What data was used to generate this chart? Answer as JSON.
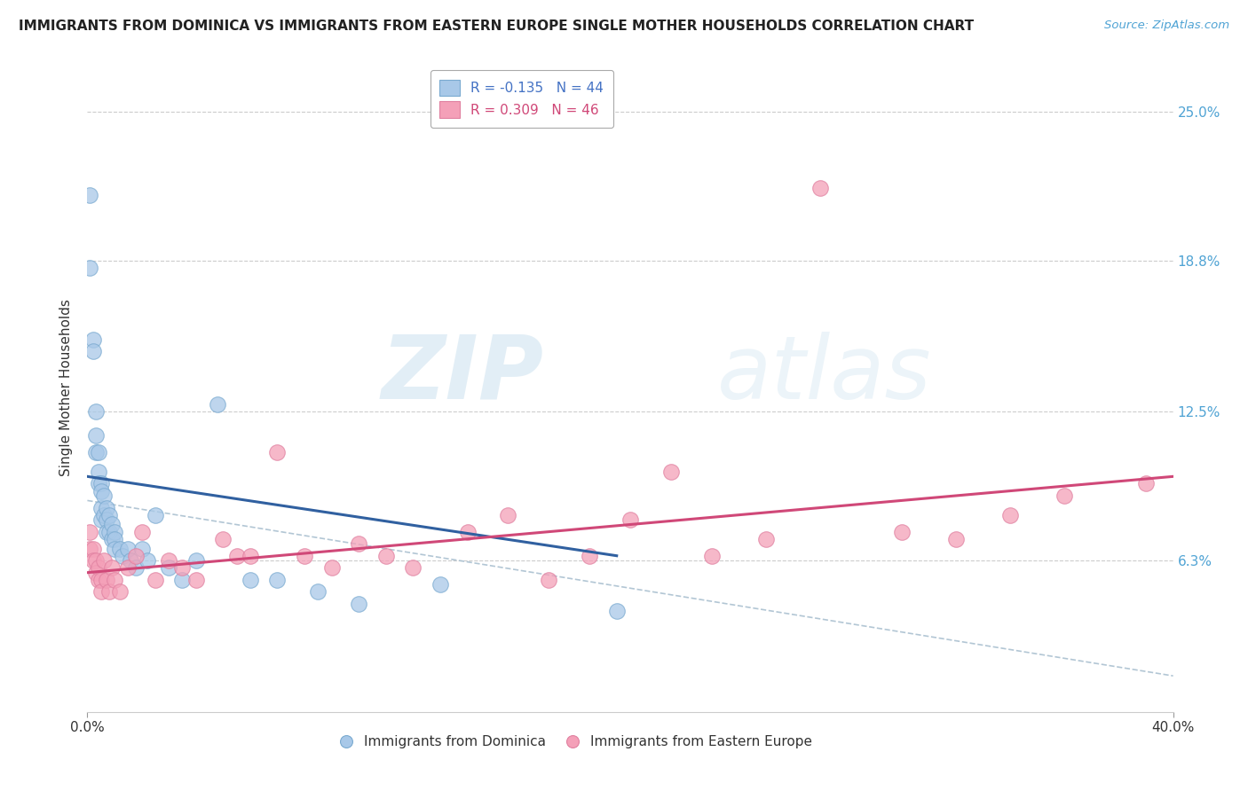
{
  "title": "IMMIGRANTS FROM DOMINICA VS IMMIGRANTS FROM EASTERN EUROPE SINGLE MOTHER HOUSEHOLDS CORRELATION CHART",
  "source": "Source: ZipAtlas.com",
  "ylabel": "Single Mother Households",
  "ytick_positions": [
    0.063,
    0.125,
    0.188,
    0.25
  ],
  "ytick_labels": [
    "6.3%",
    "12.5%",
    "18.8%",
    "25.0%"
  ],
  "xlim": [
    0.0,
    0.4
  ],
  "ylim": [
    0.0,
    0.27
  ],
  "legend1_label": "R = -0.135   N = 44",
  "legend2_label": "R = 0.309   N = 46",
  "blue_color": "#a8c8e8",
  "pink_color": "#f4a0b8",
  "blue_line_color": "#3060a0",
  "pink_line_color": "#d04878",
  "blue_line_x": [
    0.0,
    0.195
  ],
  "blue_line_y": [
    0.098,
    0.065
  ],
  "pink_line_x": [
    0.0,
    0.4
  ],
  "pink_line_y": [
    0.058,
    0.098
  ],
  "dash_line_x": [
    0.0,
    0.4
  ],
  "dash_line_y": [
    0.088,
    0.015
  ],
  "dominica_x": [
    0.001,
    0.001,
    0.002,
    0.002,
    0.003,
    0.003,
    0.003,
    0.004,
    0.004,
    0.004,
    0.005,
    0.005,
    0.005,
    0.005,
    0.006,
    0.006,
    0.007,
    0.007,
    0.007,
    0.008,
    0.008,
    0.009,
    0.009,
    0.01,
    0.01,
    0.01,
    0.012,
    0.013,
    0.015,
    0.016,
    0.018,
    0.02,
    0.022,
    0.025,
    0.03,
    0.035,
    0.04,
    0.048,
    0.06,
    0.07,
    0.085,
    0.1,
    0.13,
    0.195
  ],
  "dominica_y": [
    0.215,
    0.185,
    0.155,
    0.15,
    0.125,
    0.115,
    0.108,
    0.108,
    0.1,
    0.095,
    0.095,
    0.092,
    0.085,
    0.08,
    0.09,
    0.082,
    0.085,
    0.08,
    0.075,
    0.082,
    0.075,
    0.078,
    0.072,
    0.075,
    0.072,
    0.068,
    0.068,
    0.065,
    0.068,
    0.063,
    0.06,
    0.068,
    0.063,
    0.082,
    0.06,
    0.055,
    0.063,
    0.128,
    0.055,
    0.055,
    0.05,
    0.045,
    0.053,
    0.042
  ],
  "eastern_x": [
    0.001,
    0.001,
    0.002,
    0.002,
    0.003,
    0.003,
    0.004,
    0.004,
    0.005,
    0.005,
    0.006,
    0.007,
    0.008,
    0.009,
    0.01,
    0.012,
    0.015,
    0.018,
    0.02,
    0.025,
    0.03,
    0.035,
    0.04,
    0.05,
    0.055,
    0.06,
    0.07,
    0.08,
    0.09,
    0.1,
    0.11,
    0.12,
    0.14,
    0.155,
    0.17,
    0.185,
    0.2,
    0.215,
    0.23,
    0.25,
    0.27,
    0.3,
    0.32,
    0.34,
    0.36,
    0.39
  ],
  "eastern_y": [
    0.075,
    0.068,
    0.068,
    0.063,
    0.063,
    0.058,
    0.06,
    0.055,
    0.055,
    0.05,
    0.063,
    0.055,
    0.05,
    0.06,
    0.055,
    0.05,
    0.06,
    0.065,
    0.075,
    0.055,
    0.063,
    0.06,
    0.055,
    0.072,
    0.065,
    0.065,
    0.108,
    0.065,
    0.06,
    0.07,
    0.065,
    0.06,
    0.075,
    0.082,
    0.055,
    0.065,
    0.08,
    0.1,
    0.065,
    0.072,
    0.218,
    0.075,
    0.072,
    0.082,
    0.09,
    0.095
  ]
}
